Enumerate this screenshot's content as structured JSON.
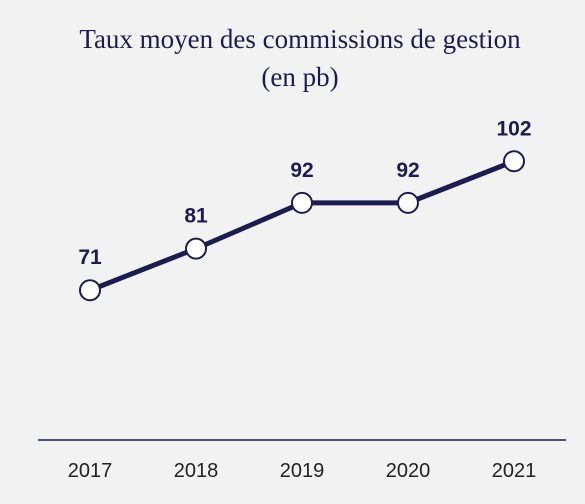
{
  "chart_data": {
    "type": "line",
    "title": "Taux moyen des commissions de gestion",
    "subtitle": "(en pb)",
    "categories": [
      "2017",
      "2018",
      "2019",
      "2020",
      "2021"
    ],
    "values": [
      71,
      81,
      92,
      92,
      102
    ],
    "color": "#1c1c50",
    "ylim": [
      35,
      110
    ]
  }
}
